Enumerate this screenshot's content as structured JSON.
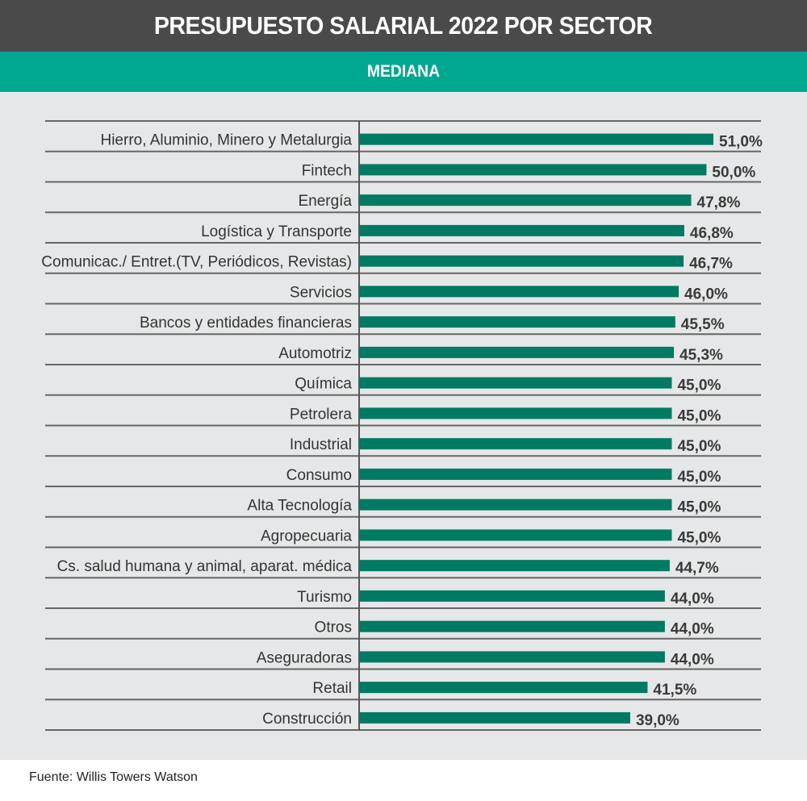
{
  "header": {
    "title": "PRESUPUESTO SALARIAL 2022 POR SECTOR"
  },
  "subheader": {
    "label": "MEDIANA"
  },
  "footer": {
    "source": "Fuente: Willis Towers Watson"
  },
  "colors": {
    "bar": "#007a63",
    "header_bg": "#4a4a4a",
    "subheader_bg": "#00a88f",
    "panel_bg": "#e6e7e8",
    "text": "#333333"
  },
  "chart_data": {
    "type": "bar",
    "orientation": "horizontal",
    "title": "PRESUPUESTO SALARIAL 2022 POR SECTOR",
    "subtitle": "MEDIANA",
    "xlabel": "",
    "ylabel": "",
    "unit": "%",
    "xlim": [
      0,
      51
    ],
    "grid": true,
    "legend": "none",
    "categories": [
      "Hierro, Aluminio, Minero y Metalurgia",
      "Fintech",
      "Energía",
      "Logística y Transporte",
      "Comunicac./ Entret.(TV, Periódicos, Revistas)",
      "Servicios",
      "Bancos y entidades financieras",
      "Automotriz",
      "Química",
      "Petrolera",
      "Industrial",
      "Consumo",
      "Alta Tecnología",
      "Agropecuaria",
      "Cs. salud humana y animal, aparat. médica",
      "Turismo",
      "Otros",
      "Aseguradoras",
      "Retail",
      "Construcción"
    ],
    "values": [
      51.0,
      50.0,
      47.8,
      46.8,
      46.7,
      46.0,
      45.5,
      45.3,
      45.0,
      45.0,
      45.0,
      45.0,
      45.0,
      45.0,
      44.7,
      44.0,
      44.0,
      44.0,
      41.5,
      39.0
    ],
    "value_labels": [
      "51,0%",
      "50,0%",
      "47,8%",
      "46,8%",
      "46,7%",
      "46,0%",
      "45,5%",
      "45,3%",
      "45,0%",
      "45,0%",
      "45,0%",
      "45,0%",
      "45,0%",
      "45,0%",
      "44,7%",
      "44,0%",
      "44,0%",
      "44,0%",
      "41,5%",
      "39,0%"
    ],
    "source": "Fuente: Willis Towers Watson"
  }
}
